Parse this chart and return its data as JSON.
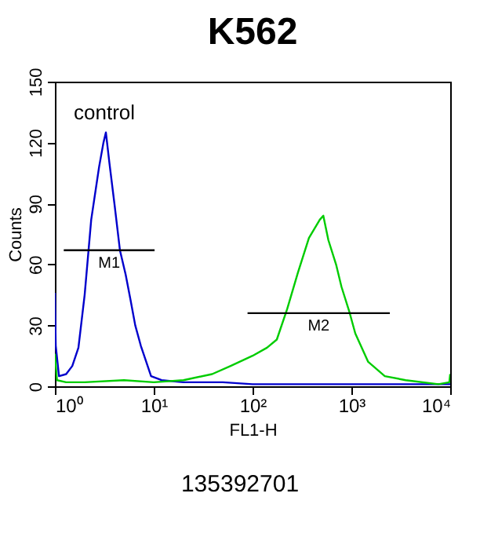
{
  "chart_data": {
    "type": "line",
    "title": "K562",
    "xlabel": "FL1-H",
    "ylabel": "Counts",
    "log": "x",
    "grid": false,
    "xlim": [
      1,
      10000
    ],
    "xticks": [
      {
        "value": 1,
        "label": "10⁰"
      },
      {
        "value": 10,
        "label": "10¹"
      },
      {
        "value": 100,
        "label": "10²"
      },
      {
        "value": 1000,
        "label": "10³"
      },
      {
        "value": 10000,
        "label": "10⁴"
      }
    ],
    "ylim": [
      0,
      150
    ],
    "yticks": [
      0,
      30,
      60,
      90,
      120,
      150
    ],
    "annotations": [
      "control",
      "135392701"
    ],
    "series": [
      {
        "color": "#0000cc",
        "x": [
          1,
          1.02,
          1.1,
          1.3,
          1.5,
          1.73,
          2,
          2.33,
          2.8,
          3.1,
          3.28,
          3.56,
          4,
          4.55,
          5.2,
          5.8,
          6.5,
          7.4,
          8.4,
          9.4,
          12,
          20,
          50,
          100,
          300,
          1000,
          3000,
          10000
        ],
        "values": [
          46,
          20,
          5,
          6,
          10,
          19,
          45,
          82,
          108,
          120,
          125,
          110,
          90,
          67,
          55,
          43,
          30,
          20,
          12,
          5,
          3,
          2,
          2,
          1,
          1,
          1,
          1,
          1
        ]
      },
      {
        "color": "#00cc00",
        "x": [
          1,
          1.05,
          1.3,
          2,
          5,
          10,
          20,
          39,
          60,
          100,
          140,
          176,
          224,
          288,
          372,
          479,
          520,
          585,
          700,
          794,
          950,
          1096,
          1480,
          2180,
          3540,
          7600,
          9800,
          10000
        ],
        "values": [
          16,
          3,
          2,
          2,
          3,
          2,
          3,
          6,
          10,
          15,
          19,
          23,
          38,
          56,
          73,
          82,
          84,
          72,
          60,
          49,
          37,
          26,
          12,
          5,
          3,
          1,
          2,
          6
        ]
      },
      {
        "name": "M1",
        "color": "#000000",
        "x": [
          1.23,
          10.2
        ],
        "values": [
          67,
          67
        ]
      },
      {
        "name": "M2",
        "color": "#000000",
        "x": [
          89,
          2450
        ],
        "values": [
          36,
          36
        ]
      }
    ]
  }
}
